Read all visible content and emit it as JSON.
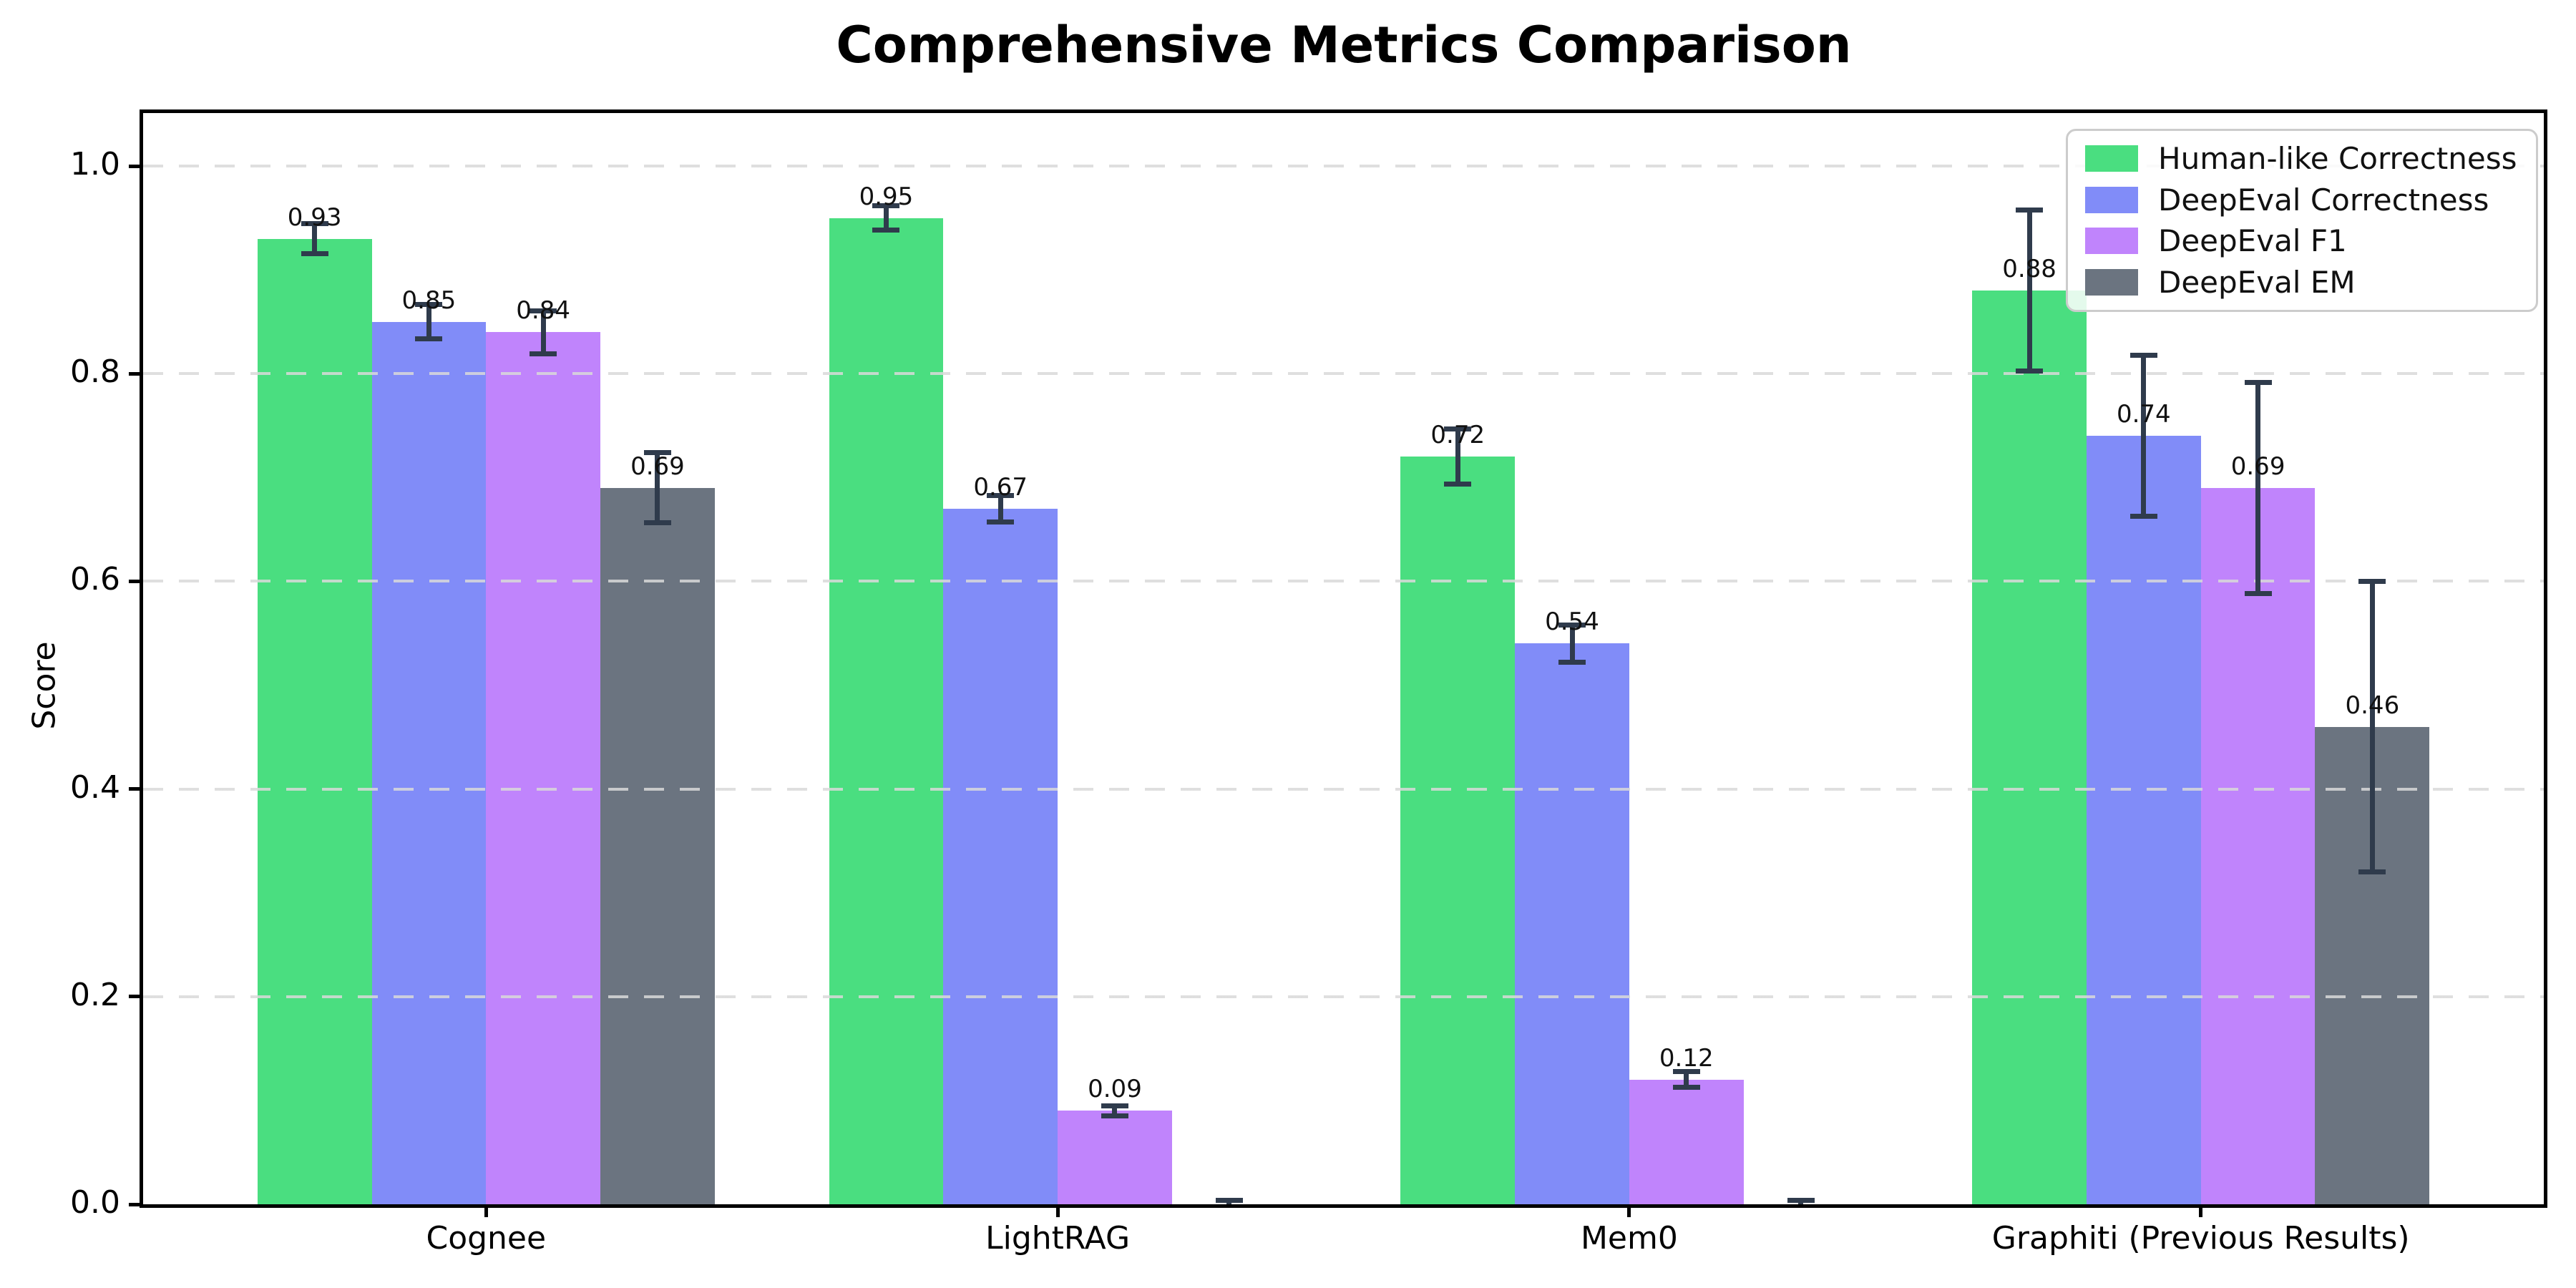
{
  "chart_data": {
    "type": "bar",
    "title": "Comprehensive Metrics Comparison",
    "ylabel": "Score",
    "xlabel": "",
    "categories": [
      "Cognee",
      "LightRAG",
      "Mem0",
      "Graphiti (Previous Results)"
    ],
    "series": [
      {
        "name": "Human-like Correctness",
        "color": "#4ade80",
        "values": [
          0.93,
          0.95,
          0.72,
          0.88
        ],
        "errors": [
          0.015,
          0.012,
          0.027,
          0.078
        ]
      },
      {
        "name": "DeepEval Correctness",
        "color": "#818cf8",
        "values": [
          0.85,
          0.67,
          0.54,
          0.74
        ],
        "errors": [
          0.017,
          0.013,
          0.018,
          0.078
        ]
      },
      {
        "name": "DeepEval F1",
        "color": "#c084fc",
        "values": [
          0.84,
          0.09,
          0.12,
          0.69
        ],
        "errors": [
          0.021,
          0.005,
          0.008,
          0.102
        ]
      },
      {
        "name": "DeepEval EM",
        "color": "#6b7480",
        "values": [
          0.69,
          0.0,
          0.0,
          0.46
        ],
        "errors": [
          0.034,
          0.004,
          0.004,
          0.14
        ]
      }
    ],
    "bar_labels": {
      "Cognee": [
        "0.93",
        "0.85",
        "0.84",
        "0.69"
      ],
      "LightRAG": [
        "0.95",
        "0.67",
        "0.09",
        ""
      ],
      "Mem0": [
        "0.72",
        "0.54",
        "0.12",
        ""
      ],
      "Graphiti (Previous Results)": [
        "0.88",
        "0.74",
        "0.69",
        "0.46"
      ]
    },
    "yticks": [
      "0.0",
      "0.2",
      "0.4",
      "0.6",
      "0.8",
      "1.0"
    ],
    "ylim": [
      0,
      1.05
    ],
    "grid": "horizontal dashed",
    "legend_position": "upper right",
    "colors": {
      "errorbar": "#2f3b4c",
      "gridline": "#d9d9d9",
      "axis": "#000000",
      "background": "#ffffff"
    }
  }
}
